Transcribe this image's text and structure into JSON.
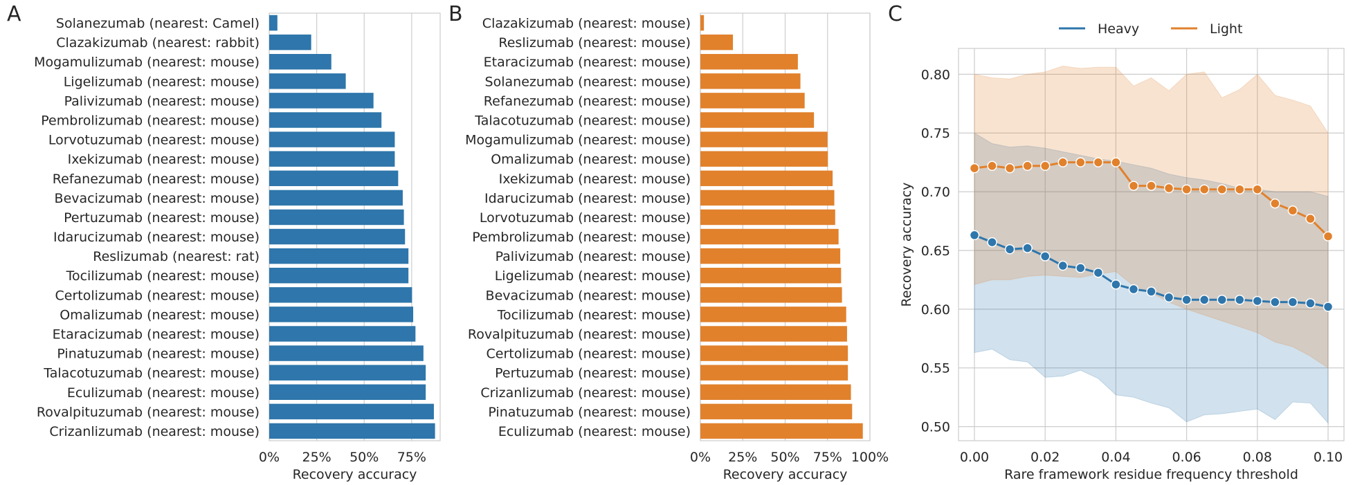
{
  "panel_letters": [
    "A",
    "B",
    "C"
  ],
  "chart_data": [
    {
      "type": "bar",
      "orientation": "horizontal",
      "panel": "A",
      "color": "#2e76ab",
      "categories": [
        "Solanezumab (nearest: Camel)",
        "Clazakizumab (nearest: rabbit)",
        "Mogamulizumab (nearest: mouse)",
        "Ligelizumab (nearest: mouse)",
        "Palivizumab (nearest: mouse)",
        "Pembrolizumab (nearest: mouse)",
        "Lorvotuzumab (nearest: mouse)",
        "Ixekizumab (nearest: mouse)",
        "Refanezumab (nearest: mouse)",
        "Bevacizumab (nearest: mouse)",
        "Pertuzumab (nearest: mouse)",
        "Idarucizumab (nearest: mouse)",
        "Reslizumab (nearest: rat)",
        "Tocilizumab (nearest: mouse)",
        "Certolizumab (nearest: mouse)",
        "Omalizumab (nearest: mouse)",
        "Etaracizumab (nearest: mouse)",
        "Pinatuzumab (nearest: mouse)",
        "Talacotuzumab (nearest: mouse)",
        "Eculizumab (nearest: mouse)",
        "Rovalpituzumab (nearest: mouse)",
        "Crizanlizumab (nearest: mouse)"
      ],
      "values": [
        0.043,
        0.221,
        0.327,
        0.403,
        0.549,
        0.591,
        0.661,
        0.661,
        0.679,
        0.703,
        0.709,
        0.715,
        0.733,
        0.733,
        0.752,
        0.758,
        0.77,
        0.812,
        0.824,
        0.824,
        0.867,
        0.873
      ],
      "xlabel": "Recovery accuracy",
      "xlim": [
        0,
        0.9
      ],
      "xticks": [
        "0%",
        "25%",
        "50%",
        "75%"
      ],
      "xtick_values": [
        0,
        0.25,
        0.5,
        0.75
      ],
      "grid": true
    },
    {
      "type": "bar",
      "orientation": "horizontal",
      "panel": "B",
      "color": "#e1812c",
      "categories": [
        "Clazakizumab (nearest: mouse)",
        "Reslizumab (nearest: mouse)",
        "Etaracizumab (nearest: mouse)",
        "Solanezumab (nearest: mouse)",
        "Refanezumab (nearest: mouse)",
        "Talacotuzumab (nearest: mouse)",
        "Mogamulizumab (nearest: mouse)",
        "Omalizumab (nearest: mouse)",
        "Ixekizumab (nearest: mouse)",
        "Idarucizumab (nearest: mouse)",
        "Lorvotuzumab (nearest: mouse)",
        "Pembrolizumab (nearest: mouse)",
        "Palivizumab (nearest: mouse)",
        "Ligelizumab (nearest: mouse)",
        "Bevacizumab (nearest: mouse)",
        "Tocilizumab (nearest: mouse)",
        "Rovalpituzumab (nearest: mouse)",
        "Certolizumab (nearest: mouse)",
        "Pertuzumab (nearest: mouse)",
        "Crizanlizumab (nearest: mouse)",
        "Pinatuzumab (nearest: mouse)",
        "Eculizumab (nearest: mouse)"
      ],
      "values": [
        0.021,
        0.192,
        0.575,
        0.59,
        0.615,
        0.67,
        0.75,
        0.752,
        0.78,
        0.79,
        0.795,
        0.815,
        0.825,
        0.83,
        0.835,
        0.86,
        0.865,
        0.87,
        0.87,
        0.888,
        0.895,
        0.958
      ],
      "xlabel": "Recovery accuracy",
      "xlim": [
        0,
        1.0
      ],
      "xticks": [
        "0%",
        "25%",
        "50%",
        "75%",
        "100%"
      ],
      "xtick_values": [
        0,
        0.25,
        0.5,
        0.75,
        1.0
      ],
      "grid": true
    },
    {
      "type": "line",
      "panel": "C",
      "x": [
        0,
        0.005,
        0.01,
        0.015,
        0.02,
        0.025,
        0.03,
        0.035,
        0.04,
        0.045,
        0.05,
        0.055,
        0.06,
        0.065,
        0.07,
        0.075,
        0.08,
        0.085,
        0.09,
        0.095,
        0.1
      ],
      "series": [
        {
          "name": "Heavy",
          "color": "#2e76ab",
          "values": [
            0.663,
            0.657,
            0.651,
            0.652,
            0.645,
            0.637,
            0.635,
            0.631,
            0.621,
            0.617,
            0.615,
            0.61,
            0.608,
            0.608,
            0.608,
            0.608,
            0.607,
            0.606,
            0.606,
            0.605,
            0.602
          ],
          "band_low": [
            0.563,
            0.566,
            0.557,
            0.555,
            0.542,
            0.543,
            0.548,
            0.541,
            0.527,
            0.525,
            0.52,
            0.516,
            0.504,
            0.51,
            0.511,
            0.513,
            0.515,
            0.506,
            0.521,
            0.52,
            0.503
          ],
          "band_high": [
            0.75,
            0.741,
            0.738,
            0.739,
            0.737,
            0.734,
            0.731,
            0.728,
            0.726,
            0.723,
            0.72,
            0.715,
            0.712,
            0.71,
            0.707,
            0.703,
            0.702,
            0.7,
            0.7,
            0.7,
            0.696
          ]
        },
        {
          "name": "Light",
          "color": "#e1812c",
          "values": [
            0.72,
            0.722,
            0.72,
            0.722,
            0.722,
            0.725,
            0.725,
            0.725,
            0.725,
            0.705,
            0.705,
            0.703,
            0.702,
            0.702,
            0.702,
            0.702,
            0.702,
            0.69,
            0.684,
            0.677,
            0.662
          ],
          "band_low": [
            0.621,
            0.625,
            0.625,
            0.628,
            0.629,
            0.628,
            0.627,
            0.63,
            0.632,
            0.62,
            0.614,
            0.606,
            0.6,
            0.595,
            0.59,
            0.585,
            0.58,
            0.572,
            0.568,
            0.56,
            0.55
          ],
          "band_high": [
            0.8,
            0.797,
            0.796,
            0.8,
            0.802,
            0.807,
            0.805,
            0.806,
            0.806,
            0.79,
            0.797,
            0.786,
            0.8,
            0.802,
            0.78,
            0.787,
            0.8,
            0.782,
            0.778,
            0.773,
            0.75
          ]
        }
      ],
      "xlabel": "Rare framework residue frequency threshold",
      "ylabel": "Recovery accuracy",
      "xlim": [
        -0.0045,
        0.1045
      ],
      "ylim": [
        0.488,
        0.822
      ],
      "xticks": [
        "0.00",
        "0.02",
        "0.04",
        "0.06",
        "0.08",
        "0.10"
      ],
      "xtick_values": [
        0,
        0.02,
        0.04,
        0.06,
        0.08,
        0.1
      ],
      "yticks": [
        "0.50",
        "0.55",
        "0.60",
        "0.65",
        "0.70",
        "0.75",
        "0.80"
      ],
      "ytick_values": [
        0.5,
        0.55,
        0.6,
        0.65,
        0.7,
        0.75,
        0.8
      ],
      "legend": "top",
      "grid": true
    }
  ]
}
